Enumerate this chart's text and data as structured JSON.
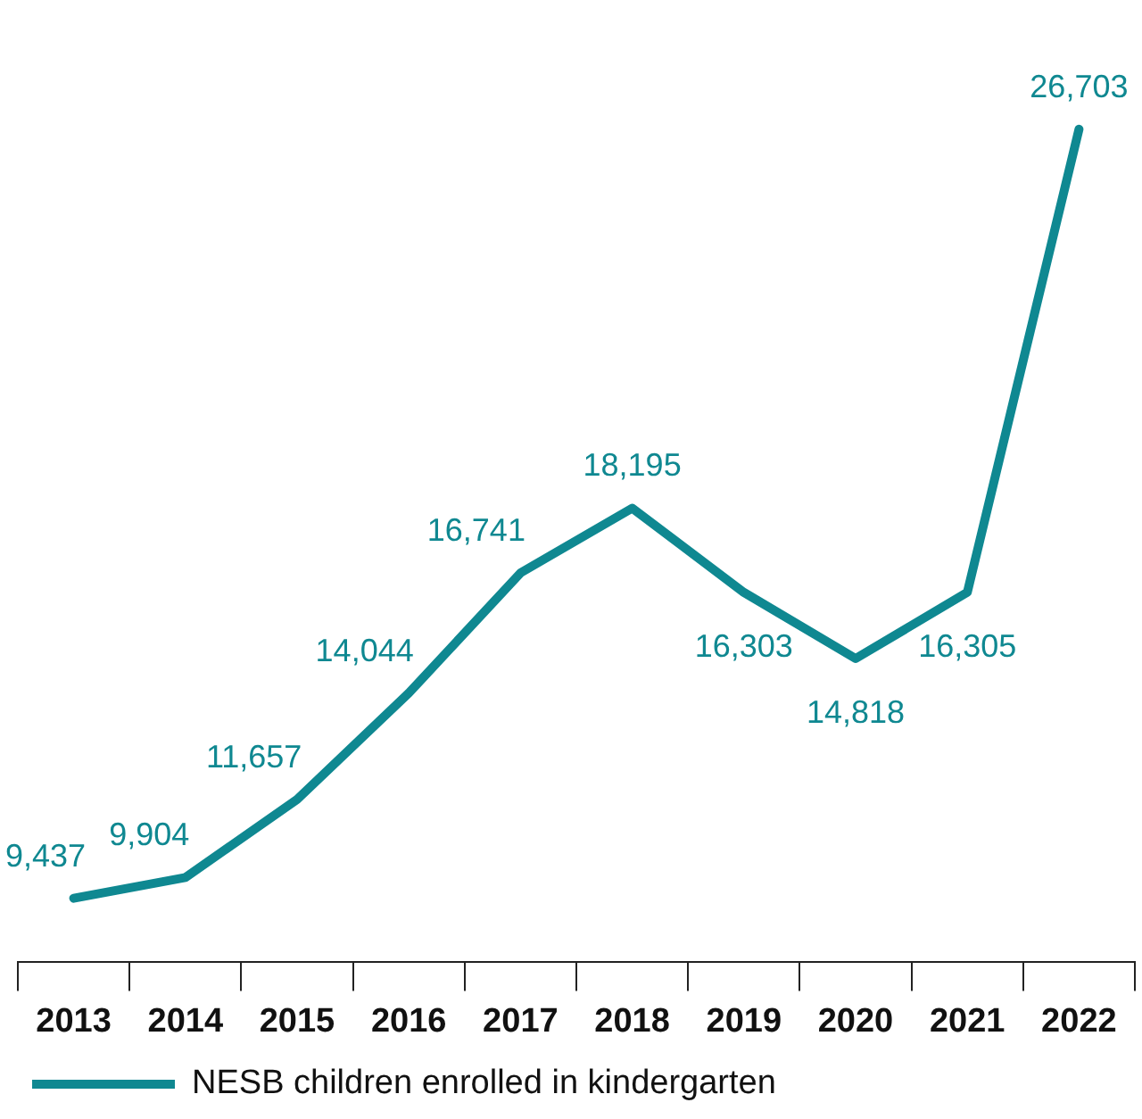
{
  "chart_data": {
    "type": "line",
    "categories": [
      "2013",
      "2014",
      "2015",
      "2016",
      "2017",
      "2018",
      "2019",
      "2020",
      "2021",
      "2022"
    ],
    "series": [
      {
        "name": "NESB children enrolled in kindergarten",
        "color": "#0f8891",
        "values": [
          9437,
          9904,
          11657,
          14044,
          16741,
          18195,
          16303,
          14818,
          16305,
          26703
        ],
        "value_labels": [
          "9,437",
          "9,904",
          "11,657",
          "14,044",
          "16,741",
          "18,195",
          "16,303",
          "14,818",
          "16,305",
          "26,703"
        ]
      }
    ],
    "legend": "bottom",
    "marker": "none",
    "grid": false,
    "tick_labels": "x"
  }
}
